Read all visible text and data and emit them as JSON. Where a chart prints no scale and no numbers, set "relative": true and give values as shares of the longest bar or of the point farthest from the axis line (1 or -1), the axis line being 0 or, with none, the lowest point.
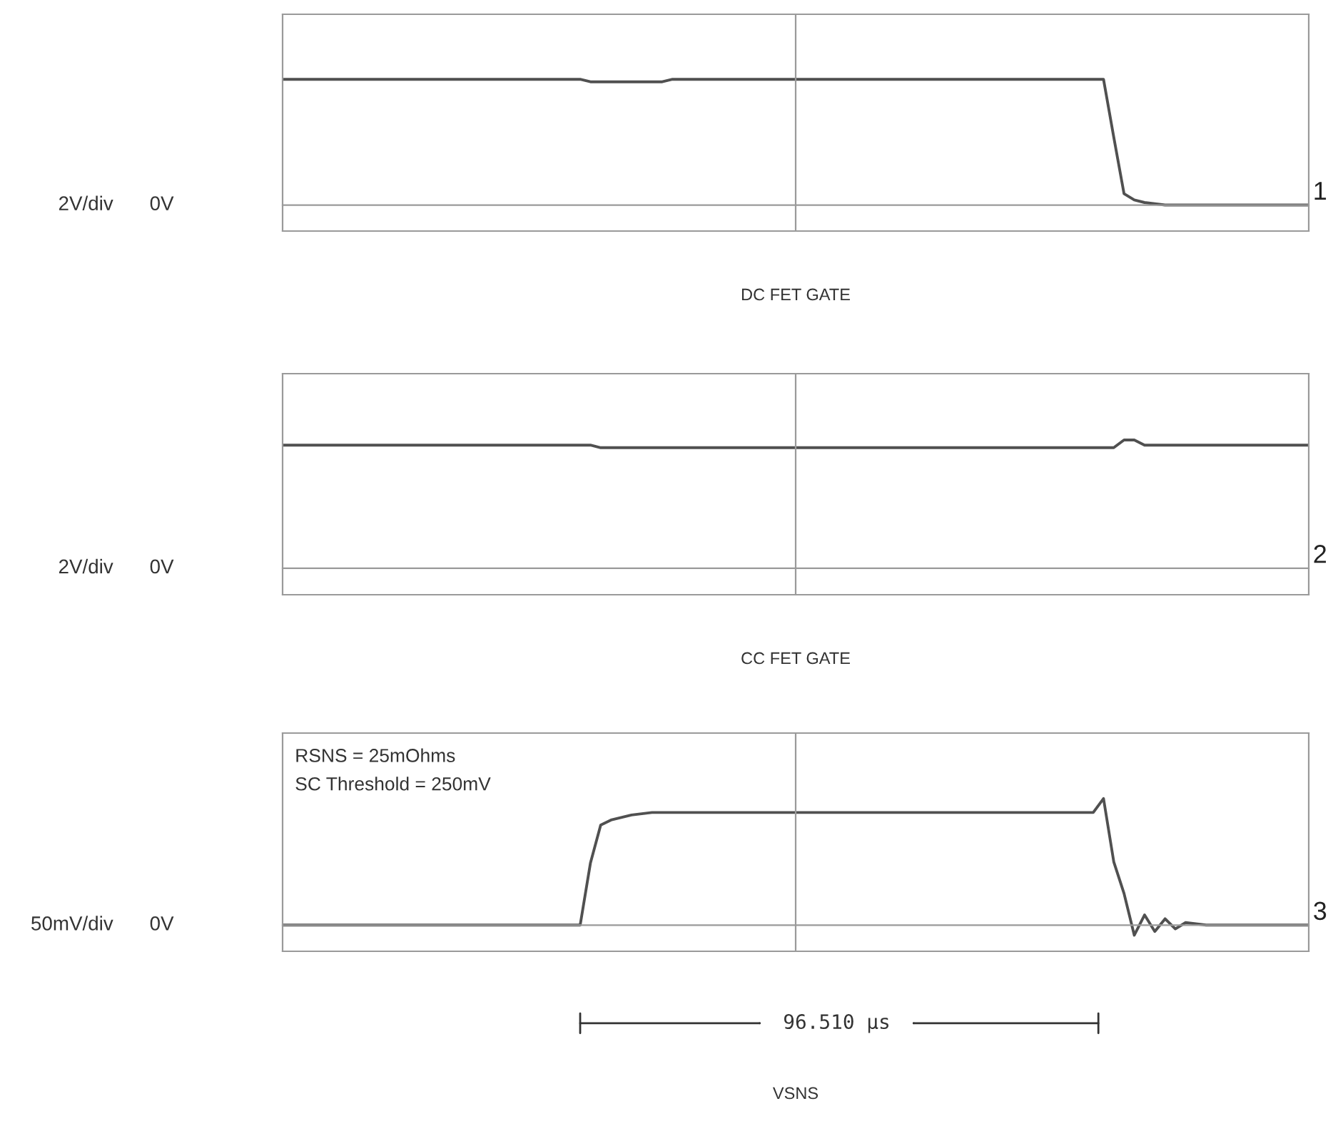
{
  "chart_data": [
    {
      "type": "line",
      "relative": true,
      "xlabel": "DC FET GATE",
      "ylabel": "2V/div",
      "annotations": [
        "0V",
        "1"
      ],
      "categories": [
        null,
        null,
        null,
        null,
        null,
        null,
        null,
        null,
        null,
        null,
        null,
        null,
        null,
        null,
        null,
        null,
        null,
        null,
        null,
        null,
        null,
        null,
        null,
        null,
        null,
        null,
        null,
        null,
        null,
        null,
        null,
        null,
        null,
        null,
        null,
        null,
        null,
        null,
        null,
        null,
        null,
        null,
        null,
        null,
        null,
        null,
        null,
        null,
        null,
        null,
        null,
        null,
        null,
        null,
        null,
        null,
        null,
        null,
        null,
        null,
        null,
        null,
        null,
        null,
        null,
        null,
        null,
        null,
        null,
        null,
        null,
        null,
        null,
        null,
        null,
        null,
        null,
        null,
        null,
        null,
        null,
        null,
        null,
        null,
        null,
        null,
        null,
        null,
        null,
        null,
        null,
        null,
        null,
        null,
        null,
        null,
        null,
        null,
        null,
        null,
        null
      ],
      "series": [
        {
          "color": "#505050",
          "values": [
            1,
            1,
            1,
            1,
            1,
            1,
            1,
            1,
            1,
            1,
            1,
            1,
            1,
            1,
            1,
            1,
            1,
            1,
            1,
            1,
            1,
            1,
            1,
            1,
            1,
            1,
            1,
            1,
            1,
            1,
            0.98,
            0.98,
            0.98,
            0.98,
            0.98,
            0.98,
            0.98,
            0.98,
            1,
            1,
            1,
            1,
            1,
            1,
            1,
            1,
            1,
            1,
            1,
            1,
            1,
            1,
            1,
            1,
            1,
            1,
            1,
            1,
            1,
            1,
            1,
            1,
            1,
            1,
            1,
            1,
            1,
            1,
            1,
            1,
            1,
            1,
            1,
            1,
            1,
            1,
            1,
            1,
            1,
            1,
            1,
            0.54,
            0.09,
            0.04,
            0.02,
            0.01,
            0,
            0,
            0,
            0,
            0,
            0,
            0,
            0,
            0,
            0,
            0,
            0,
            0,
            0,
            0
          ]
        }
      ]
    },
    {
      "type": "line",
      "relative": true,
      "xlabel": "CC FET GATE",
      "ylabel": "2V/div",
      "annotations": [
        "0V",
        "2"
      ],
      "categories": [
        null,
        null,
        null,
        null,
        null,
        null,
        null,
        null,
        null,
        null,
        null,
        null,
        null,
        null,
        null,
        null,
        null,
        null,
        null,
        null,
        null,
        null,
        null,
        null,
        null,
        null,
        null,
        null,
        null,
        null,
        null,
        null,
        null,
        null,
        null,
        null,
        null,
        null,
        null,
        null,
        null,
        null,
        null,
        null,
        null,
        null,
        null,
        null,
        null,
        null,
        null,
        null,
        null,
        null,
        null,
        null,
        null,
        null,
        null,
        null,
        null,
        null,
        null,
        null,
        null,
        null,
        null,
        null,
        null,
        null,
        null,
        null,
        null,
        null,
        null,
        null,
        null,
        null,
        null,
        null,
        null,
        null,
        null,
        null,
        null,
        null,
        null,
        null,
        null,
        null,
        null,
        null,
        null,
        null,
        null,
        null,
        null,
        null,
        null,
        null,
        null
      ],
      "series": [
        {
          "color": "#505050",
          "values": [
            0.96,
            0.96,
            0.96,
            0.96,
            0.96,
            0.96,
            0.96,
            0.96,
            0.96,
            0.96,
            0.96,
            0.96,
            0.96,
            0.96,
            0.96,
            0.96,
            0.96,
            0.96,
            0.96,
            0.96,
            0.96,
            0.96,
            0.96,
            0.96,
            0.96,
            0.96,
            0.96,
            0.96,
            0.96,
            0.96,
            0.96,
            0.94,
            0.94,
            0.94,
            0.94,
            0.94,
            0.94,
            0.94,
            0.94,
            0.94,
            0.94,
            0.94,
            0.94,
            0.94,
            0.94,
            0.94,
            0.94,
            0.94,
            0.94,
            0.94,
            0.94,
            0.94,
            0.94,
            0.94,
            0.94,
            0.94,
            0.94,
            0.94,
            0.94,
            0.94,
            0.94,
            0.94,
            0.94,
            0.94,
            0.94,
            0.94,
            0.94,
            0.94,
            0.94,
            0.94,
            0.94,
            0.94,
            0.94,
            0.94,
            0.94,
            0.94,
            0.94,
            0.94,
            0.94,
            0.94,
            0.94,
            0.94,
            1,
            1,
            0.96,
            0.96,
            0.96,
            0.96,
            0.96,
            0.96,
            0.96,
            0.96,
            0.96,
            0.96,
            0.96,
            0.96,
            0.96,
            0.96,
            0.96,
            0.96,
            0.96
          ]
        }
      ]
    },
    {
      "type": "line",
      "relative": true,
      "xlabel": "VSNS",
      "ylabel": "50mV/div",
      "annotations": [
        "RSNS = 25mOhms",
        "SC Threshold = 250mV",
        "96.510 μs",
        "0V",
        "3"
      ],
      "categories": [
        null,
        null,
        null,
        null,
        null,
        null,
        null,
        null,
        null,
        null,
        null,
        null,
        null,
        null,
        null,
        null,
        null,
        null,
        null,
        null,
        null,
        null,
        null,
        null,
        null,
        null,
        null,
        null,
        null,
        null,
        null,
        null,
        null,
        null,
        null,
        null,
        null,
        null,
        null,
        null,
        null,
        null,
        null,
        null,
        null,
        null,
        null,
        null,
        null,
        null,
        null,
        null,
        null,
        null,
        null,
        null,
        null,
        null,
        null,
        null,
        null,
        null,
        null,
        null,
        null,
        null,
        null,
        null,
        null,
        null,
        null,
        null,
        null,
        null,
        null,
        null,
        null,
        null,
        null,
        null,
        null,
        null,
        null,
        null,
        null,
        null,
        null,
        null,
        null,
        null,
        null,
        null,
        null,
        null,
        null,
        null,
        null,
        null,
        null,
        null,
        null
      ],
      "series": [
        {
          "color": "#505050",
          "values": [
            0,
            0,
            0,
            0,
            0,
            0,
            0,
            0,
            0,
            0,
            0,
            0,
            0,
            0,
            0,
            0,
            0,
            0,
            0,
            0,
            0,
            0,
            0,
            0,
            0,
            0,
            0,
            0,
            0,
            0,
            0.49,
            0.79,
            0.83,
            0.85,
            0.87,
            0.88,
            0.89,
            0.89,
            0.89,
            0.89,
            0.89,
            0.89,
            0.89,
            0.89,
            0.89,
            0.89,
            0.89,
            0.89,
            0.89,
            0.89,
            0.89,
            0.89,
            0.89,
            0.89,
            0.89,
            0.89,
            0.89,
            0.89,
            0.89,
            0.89,
            0.89,
            0.89,
            0.89,
            0.89,
            0.89,
            0.89,
            0.89,
            0.89,
            0.89,
            0.89,
            0.89,
            0.89,
            0.89,
            0.89,
            0.89,
            0.89,
            0.89,
            0.89,
            0.89,
            0.89,
            1,
            0.5,
            0.25,
            -0.08,
            0.08,
            -0.05,
            0.05,
            -0.03,
            0.02,
            0.01,
            0,
            0,
            0,
            0,
            0,
            0,
            0,
            0,
            0,
            0,
            0
          ]
        }
      ]
    }
  ]
}
